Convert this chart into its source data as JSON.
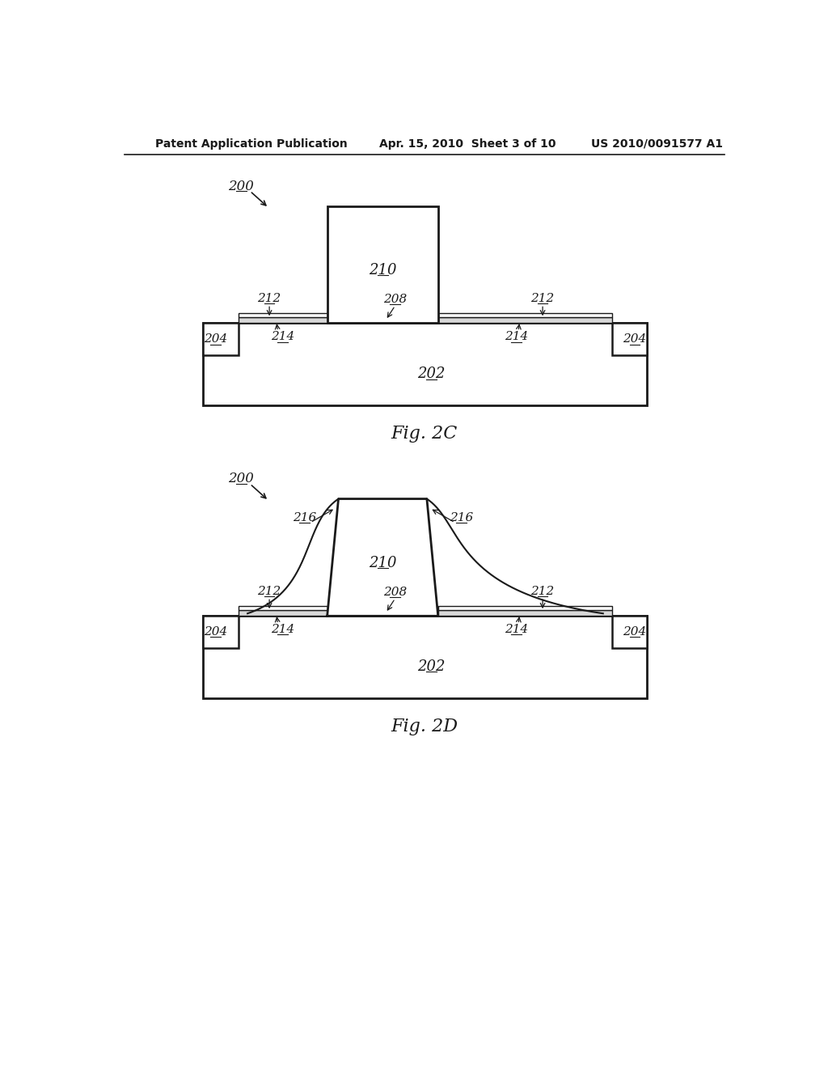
{
  "bg_color": "#ffffff",
  "line_color": "#1a1a1a",
  "header_text": "Patent Application Publication",
  "header_date": "Apr. 15, 2010  Sheet 3 of 10",
  "header_patent": "US 2010/0091577 A1",
  "fig2c_label": "Fig. 2C",
  "fig2d_label": "Fig. 2D"
}
